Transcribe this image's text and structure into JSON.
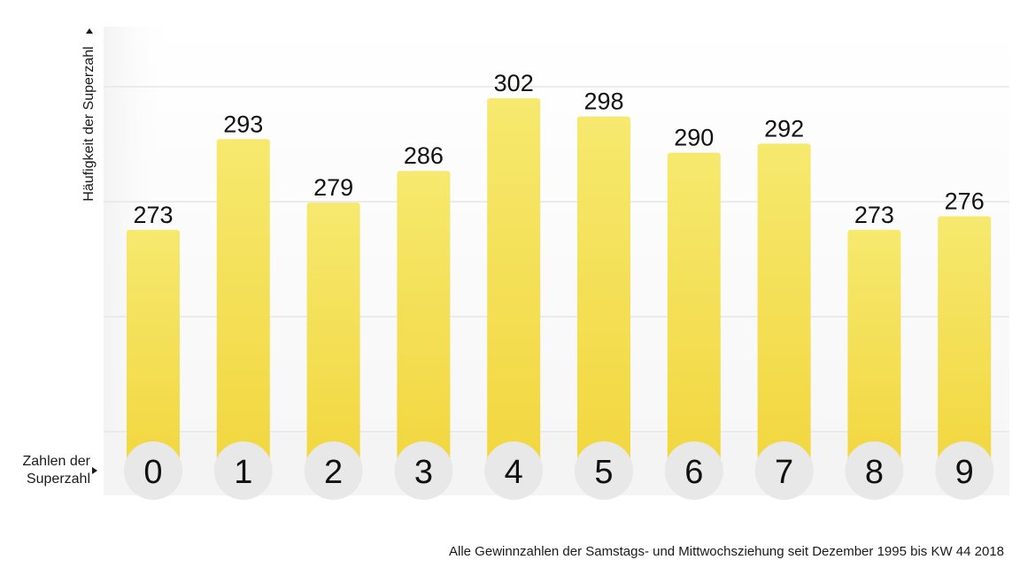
{
  "chart_data": {
    "type": "bar",
    "categories": [
      "0",
      "1",
      "2",
      "3",
      "4",
      "5",
      "6",
      "7",
      "8",
      "9"
    ],
    "values": [
      273,
      293,
      279,
      286,
      302,
      298,
      290,
      292,
      273,
      276
    ],
    "ylabel": "Häufigkeit der Superzahl",
    "xlabel": "Zahlen der Superzahl",
    "ylim": [
      220,
      310
    ],
    "grid": true,
    "legend": "none",
    "colors": {
      "bar_top": "#f6e96e",
      "bar_bottom": "#f2d63e",
      "badge": "#e8e8e8",
      "grid": "#e6e6e6"
    }
  },
  "footnote": "Alle Gewinnzahlen der Samstags- und Mittwochsziehung seit Dezember 1995 bis KW 44 2018"
}
